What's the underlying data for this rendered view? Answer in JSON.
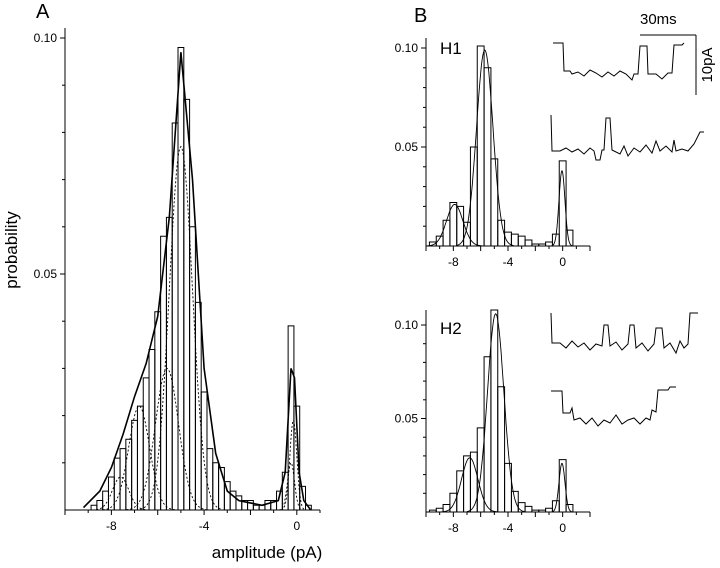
{
  "panels": {
    "A": {
      "letter": "A"
    },
    "B": {
      "letter": "B",
      "scalebar_time": "30ms",
      "scalebar_current": "10pA"
    }
  },
  "chart_data": [
    {
      "type": "bar",
      "panel": "A",
      "xlabel": "amplitude (pA)",
      "ylabel": "probability",
      "xlim": [
        -10,
        1
      ],
      "ylim": [
        0,
        0.1
      ],
      "xticks": [
        -8,
        -4,
        0
      ],
      "xtick_labels": [
        "-8",
        "-4",
        "0"
      ],
      "yticks": [
        0.05,
        0.1
      ],
      "ytick_labels": [
        "0.05",
        "0.10"
      ],
      "histogram": {
        "bin_centers": [
          -9.0,
          -8.75,
          -8.5,
          -8.25,
          -8.0,
          -7.75,
          -7.5,
          -7.25,
          -7.0,
          -6.75,
          -6.5,
          -6.25,
          -6.0,
          -5.75,
          -5.5,
          -5.25,
          -5.0,
          -4.75,
          -4.5,
          -4.25,
          -4.0,
          -3.75,
          -3.5,
          -3.25,
          -3.0,
          -2.75,
          -2.5,
          -2.25,
          -2.0,
          -1.75,
          -1.5,
          -1.25,
          -1.0,
          -0.75,
          -0.5,
          -0.25,
          0.0,
          0.25,
          0.5
        ],
        "values": [
          0.0,
          0.001,
          0.002,
          0.004,
          0.007,
          0.011,
          0.013,
          0.015,
          0.019,
          0.022,
          0.028,
          0.034,
          0.042,
          0.058,
          0.062,
          0.082,
          0.098,
          0.087,
          0.06,
          0.044,
          0.025,
          0.013,
          0.01,
          0.009,
          0.006,
          0.004,
          0.003,
          0.002,
          0.002,
          0.001,
          0.001,
          0.002,
          0.002,
          0.004,
          0.008,
          0.039,
          0.022,
          0.005,
          0.001
        ]
      },
      "fit": [
        {
          "x": -9.2,
          "y": 0.0005
        },
        {
          "x": -8.5,
          "y": 0.004
        },
        {
          "x": -8.0,
          "y": 0.009
        },
        {
          "x": -7.5,
          "y": 0.016
        },
        {
          "x": -7.0,
          "y": 0.024
        },
        {
          "x": -6.5,
          "y": 0.031
        },
        {
          "x": -6.0,
          "y": 0.041
        },
        {
          "x": -5.5,
          "y": 0.062
        },
        {
          "x": -5.0,
          "y": 0.097
        },
        {
          "x": -4.5,
          "y": 0.07
        },
        {
          "x": -4.0,
          "y": 0.03
        },
        {
          "x": -3.5,
          "y": 0.012
        },
        {
          "x": -3.0,
          "y": 0.004
        },
        {
          "x": -2.5,
          "y": 0.002
        },
        {
          "x": -1.5,
          "y": 0.001
        },
        {
          "x": -0.8,
          "y": 0.002
        },
        {
          "x": -0.5,
          "y": 0.008
        },
        {
          "x": -0.25,
          "y": 0.03
        },
        {
          "x": -0.1,
          "y": 0.028
        },
        {
          "x": 0.1,
          "y": 0.008
        },
        {
          "x": 0.3,
          "y": 0.002
        },
        {
          "x": 0.6,
          "y": 0.0
        }
      ],
      "components": [
        {
          "mean": -7.6,
          "sd": 0.35,
          "peak": 0.007
        },
        {
          "mean": -6.8,
          "sd": 0.45,
          "peak": 0.022
        },
        {
          "mean": -5.6,
          "sd": 0.5,
          "peak": 0.03
        },
        {
          "mean": -5.0,
          "sd": 0.5,
          "peak": 0.077
        },
        {
          "mean": -0.25,
          "sd": 0.15,
          "peak": 0.01
        },
        {
          "mean": -0.15,
          "sd": 0.15,
          "peak": 0.019
        }
      ]
    },
    {
      "type": "bar",
      "panel": "B",
      "label": "H1",
      "xlim": [
        -10,
        2
      ],
      "ylim": [
        0,
        0.1
      ],
      "xticks": [
        -8,
        -4,
        0
      ],
      "xtick_labels": [
        "-8",
        "-4",
        "0"
      ],
      "yticks": [
        0.05,
        0.1
      ],
      "ytick_labels": [
        "0.05",
        "0.10"
      ],
      "histogram": {
        "bin_centers": [
          -9.5,
          -9.0,
          -8.5,
          -8.0,
          -7.5,
          -7.0,
          -6.5,
          -6.0,
          -5.5,
          -5.0,
          -4.5,
          -4.0,
          -3.5,
          -3.0,
          -2.5,
          -2.0,
          -1.5,
          -1.0,
          -0.5,
          0.0,
          0.5
        ],
        "values": [
          0.002,
          0.005,
          0.013,
          0.022,
          0.02,
          0.012,
          0.05,
          0.101,
          0.09,
          0.044,
          0.013,
          0.007,
          0.006,
          0.005,
          0.003,
          0.001,
          0.001,
          0.002,
          0.006,
          0.043,
          0.008
        ]
      },
      "components": [
        {
          "mean": -7.9,
          "sd": 0.6,
          "peak": 0.021
        },
        {
          "mean": -5.7,
          "sd": 0.6,
          "peak": 0.099
        },
        {
          "mean": -0.05,
          "sd": 0.22,
          "peak": 0.038
        }
      ]
    },
    {
      "type": "bar",
      "panel": "B",
      "label": "H2",
      "xlim": [
        -10,
        2
      ],
      "ylim": [
        0,
        0.11
      ],
      "xticks": [
        -8,
        -4,
        0
      ],
      "xtick_labels": [
        "-8",
        "-4",
        "0"
      ],
      "yticks": [
        0.05,
        0.1
      ],
      "ytick_labels": [
        "0.05",
        "0.10"
      ],
      "histogram": {
        "bin_centers": [
          -9.5,
          -9.0,
          -8.5,
          -8.0,
          -7.5,
          -7.0,
          -6.5,
          -6.0,
          -5.5,
          -5.0,
          -4.5,
          -4.0,
          -3.5,
          -3.0,
          -2.5,
          -2.0,
          -1.5,
          -1.0,
          -0.5,
          0.0,
          0.5
        ],
        "values": [
          0.001,
          0.002,
          0.004,
          0.01,
          0.022,
          0.03,
          0.032,
          0.045,
          0.083,
          0.108,
          0.067,
          0.026,
          0.011,
          0.005,
          0.003,
          0.001,
          0.001,
          0.002,
          0.006,
          0.028,
          0.004
        ]
      },
      "components": [
        {
          "mean": -6.8,
          "sd": 0.6,
          "peak": 0.029
        },
        {
          "mean": -4.9,
          "sd": 0.6,
          "peak": 0.106
        },
        {
          "mean": -0.05,
          "sd": 0.22,
          "peak": 0.026
        }
      ]
    }
  ]
}
